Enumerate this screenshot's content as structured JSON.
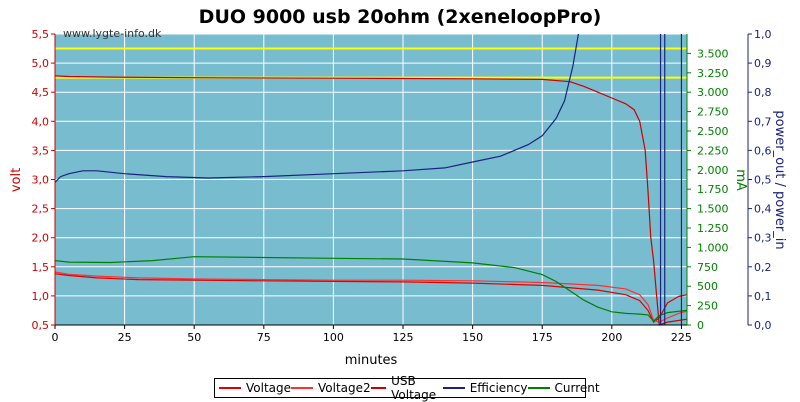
{
  "chart_data": {
    "type": "line",
    "title": "DUO 9000 usb 20ohm (2xeneloopPro)",
    "watermark": "www.lygte-info.dk",
    "xlabel": "minutes",
    "ylabel_left": "volt",
    "ylabel_right1": "mA",
    "ylabel_right2": "power_out / power_in",
    "xlim": [
      0,
      227
    ],
    "ylim_left": [
      0.5,
      5.5
    ],
    "ylim_right1": [
      0,
      3750
    ],
    "ylim_right2": [
      0,
      1.0
    ],
    "x_ticks": [
      "0",
      "25",
      "50",
      "75",
      "100",
      "125",
      "150",
      "175",
      "200",
      "225"
    ],
    "y_left_ticks": [
      "0,5",
      "1,0",
      "1,5",
      "2,0",
      "2,5",
      "3,0",
      "3,5",
      "4,0",
      "4,5",
      "5,0",
      "5,5"
    ],
    "y_right1_ticks": [
      "0",
      "250",
      "500",
      "750",
      "1.000",
      "1.250",
      "1.500",
      "1.750",
      "2.000",
      "2.250",
      "2.500",
      "2.750",
      "3.000",
      "3.250",
      "3.500"
    ],
    "y_right2_ticks": [
      "0,0",
      "0,1",
      "0,2",
      "0,3",
      "0,4",
      "0,5",
      "0,6",
      "0,7",
      "0,8",
      "0,9",
      "1,0"
    ],
    "reference_lines_volt": [
      5.25,
      4.75
    ],
    "grid": true,
    "legend_position": "bottom",
    "colors": {
      "background": "#78bcd0",
      "grid": "#ffffff",
      "voltage": "#e00000",
      "voltage2": "#ff3030",
      "usb_voltage": "#cc0000",
      "efficiency": "#1a237e",
      "current": "#008000",
      "reference": "#ffff00",
      "left_axis": "#cc0000",
      "right1_axis": "#008000",
      "right2_axis": "#1a237e"
    },
    "series": [
      {
        "name": "Voltage",
        "axis": "volt",
        "x": [
          0,
          5,
          15,
          30,
          50,
          75,
          100,
          125,
          150,
          175,
          195,
          205,
          210,
          213,
          215,
          217,
          220,
          224,
          227
        ],
        "y": [
          1.38,
          1.35,
          1.31,
          1.28,
          1.27,
          1.26,
          1.25,
          1.24,
          1.22,
          1.18,
          1.1,
          1.02,
          0.92,
          0.75,
          0.55,
          0.62,
          0.88,
          0.99,
          1.02
        ]
      },
      {
        "name": "Voltage2",
        "axis": "volt",
        "x": [
          0,
          5,
          15,
          30,
          50,
          75,
          100,
          125,
          150,
          175,
          195,
          205,
          210,
          213,
          215,
          217,
          220,
          224,
          227
        ],
        "y": [
          1.41,
          1.37,
          1.34,
          1.31,
          1.29,
          1.28,
          1.27,
          1.27,
          1.26,
          1.23,
          1.18,
          1.12,
          1.02,
          0.85,
          0.58,
          0.55,
          0.62,
          0.7,
          0.74
        ]
      },
      {
        "name": "USB Voltage",
        "axis": "volt",
        "x": [
          0,
          5,
          20,
          50,
          100,
          150,
          175,
          185,
          190,
          195,
          200,
          205,
          208,
          210,
          212,
          213,
          214,
          215,
          217,
          220,
          227
        ],
        "y": [
          4.78,
          4.77,
          4.76,
          4.75,
          4.74,
          4.73,
          4.72,
          4.68,
          4.6,
          4.5,
          4.4,
          4.3,
          4.2,
          4.0,
          3.5,
          2.8,
          2.0,
          1.6,
          0.5,
          0.55,
          0.6
        ]
      },
      {
        "name": "Efficiency",
        "axis": "ratio",
        "x": [
          0,
          2,
          5,
          10,
          15,
          25,
          40,
          55,
          75,
          100,
          125,
          140,
          150,
          160,
          170,
          175,
          180,
          183,
          186,
          188
        ],
        "y": [
          0.49,
          0.51,
          0.52,
          0.53,
          0.53,
          0.52,
          0.51,
          0.505,
          0.51,
          0.52,
          0.53,
          0.54,
          0.56,
          0.58,
          0.62,
          0.65,
          0.71,
          0.77,
          0.89,
          1.0
        ]
      },
      {
        "name": "Current",
        "axis": "mA",
        "x": [
          0,
          5,
          20,
          35,
          50,
          75,
          100,
          125,
          150,
          165,
          175,
          180,
          185,
          190,
          195,
          200,
          205,
          210,
          213,
          215,
          217,
          220,
          227
        ],
        "y": [
          830,
          810,
          805,
          830,
          880,
          870,
          860,
          850,
          800,
          740,
          650,
          560,
          440,
          320,
          230,
          170,
          150,
          140,
          130,
          50,
          120,
          160,
          190
        ]
      }
    ]
  }
}
